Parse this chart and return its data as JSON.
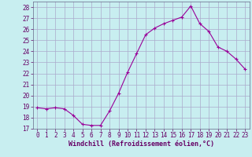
{
  "hours": [
    0,
    1,
    2,
    3,
    4,
    5,
    6,
    7,
    8,
    9,
    10,
    11,
    12,
    13,
    14,
    15,
    16,
    17,
    18,
    19,
    20,
    21,
    22,
    23
  ],
  "values": [
    18.9,
    18.8,
    18.9,
    18.8,
    18.2,
    17.4,
    17.3,
    17.3,
    18.6,
    20.2,
    22.1,
    23.8,
    25.5,
    26.1,
    26.5,
    26.8,
    27.1,
    28.1,
    26.5,
    25.8,
    24.4,
    24.0,
    23.3,
    22.4
  ],
  "xlabel": "Windchill (Refroidissement éolien,°C)",
  "ylim": [
    17,
    28.5
  ],
  "xlim": [
    -0.5,
    23.5
  ],
  "yticks": [
    17,
    18,
    19,
    20,
    21,
    22,
    23,
    24,
    25,
    26,
    27,
    28
  ],
  "xticks": [
    0,
    1,
    2,
    3,
    4,
    5,
    6,
    7,
    8,
    9,
    10,
    11,
    12,
    13,
    14,
    15,
    16,
    17,
    18,
    19,
    20,
    21,
    22,
    23
  ],
  "line_color": "#990099",
  "marker": "+",
  "bg_color": "#c8eef0",
  "grid_color": "#aaaacc",
  "tick_label_color": "#660066",
  "xlabel_color": "#660066"
}
